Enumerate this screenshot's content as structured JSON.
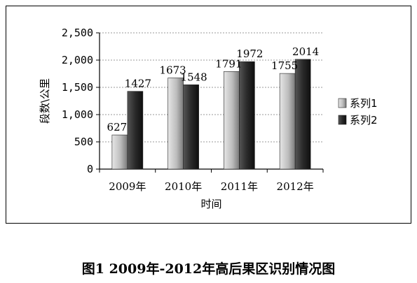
{
  "caption": "图1 2009年-2012年高后果区识别情况图",
  "chart_data": {
    "type": "bar",
    "categories": [
      "2009年",
      "2010年",
      "2011年",
      "2012年"
    ],
    "series": [
      {
        "name": "系列1",
        "values": [
          627,
          1673,
          1791,
          1755
        ],
        "labels": [
          "627",
          "1673",
          "1791",
          "1755"
        ],
        "color": "#a0a0a0"
      },
      {
        "name": "系列2",
        "values": [
          1427,
          1548,
          1972,
          2014
        ],
        "labels": [
          "1427",
          "1548",
          "1972",
          "2014"
        ],
        "color": "#2b2b2b"
      }
    ],
    "xlabel": "时间",
    "ylabel": "段数\\公里",
    "ylim": [
      0,
      2500
    ],
    "yticks": [
      0,
      500,
      1000,
      1500,
      2000,
      2500
    ],
    "ytick_labels": [
      "0",
      "500",
      "1,000",
      "1,500",
      "2,000",
      "2,500"
    ],
    "grid": true,
    "legend": "right"
  }
}
